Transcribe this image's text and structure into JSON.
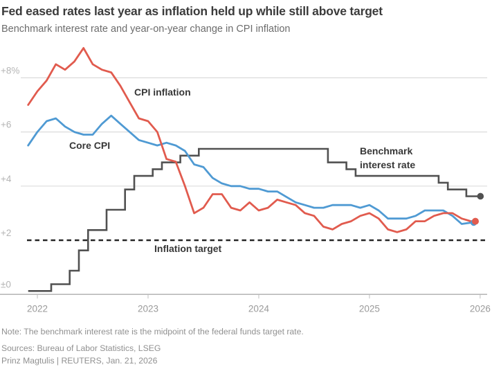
{
  "header": {
    "title": "Fed eased rates last year as inflation held up while still above target",
    "subtitle": "Benchmark interest rate and year-on-year change in CPI inflation"
  },
  "labels": {
    "cpi": "CPI inflation",
    "core": "Core CPI",
    "benchmark": "Benchmark interest rate",
    "target": "Inflation target"
  },
  "footer": {
    "note": "Note: The benchmark interest rate is the midpoint of the federal funds target rate.",
    "sources": "Sources: Bureau of Labor Statistics, LSEG",
    "byline": "Prinz Magtulis | REUTERS, Jan. 21, 2026"
  },
  "colors": {
    "cpi": "#e15b4e",
    "core": "#4f9ad3",
    "benchmark": "#515151",
    "target": "#262626",
    "grid": "#dbdbdb",
    "baseline": "#ababab",
    "tick": "#c9c9c9",
    "y_label": "#b5b5b5",
    "x_label": "#9a9a9a"
  },
  "chart_data": {
    "type": "line",
    "title": "Fed eased rates last year as inflation held up while still above target",
    "subtitle": "Benchmark interest rate and year-on-year change in CPI inflation",
    "x_start": "2021-12",
    "x_freq": "monthly",
    "x_tick_labels": [
      "2022",
      "2023",
      "2024",
      "2025",
      "2026"
    ],
    "y_ticks": [
      {
        "label": "+8%",
        "value": 8
      },
      {
        "label": "+6",
        "value": 6
      },
      {
        "label": "+4",
        "value": 4
      },
      {
        "label": "+2",
        "value": 2
      },
      {
        "label": "±0",
        "value": 0
      }
    ],
    "ylim": [
      0,
      9.6
    ],
    "grid": "horizontal",
    "legend_position": "inline-annotations",
    "series": [
      {
        "name": "CPI inflation",
        "style": "line",
        "color_key": "cpi",
        "end_dot": true,
        "values": [
          7.0,
          7.5,
          7.9,
          8.5,
          8.3,
          8.6,
          9.1,
          8.5,
          8.3,
          8.2,
          7.7,
          7.1,
          6.5,
          6.4,
          6.0,
          5.0,
          4.9,
          4.0,
          3.0,
          3.2,
          3.7,
          3.7,
          3.2,
          3.1,
          3.4,
          3.1,
          3.2,
          3.5,
          3.4,
          3.3,
          3.0,
          2.9,
          2.5,
          2.4,
          2.6,
          2.7,
          2.9,
          3.0,
          2.8,
          2.4,
          2.3,
          2.4,
          2.7,
          2.7,
          2.9,
          3.0,
          3.0,
          2.8,
          2.7
        ]
      },
      {
        "name": "Core CPI",
        "style": "line",
        "color_key": "core",
        "end_dot": true,
        "values": [
          5.5,
          6.0,
          6.4,
          6.5,
          6.2,
          6.0,
          5.9,
          5.9,
          6.3,
          6.6,
          6.3,
          6.0,
          5.7,
          5.6,
          5.5,
          5.6,
          5.5,
          5.3,
          4.8,
          4.7,
          4.3,
          4.1,
          4.0,
          4.0,
          3.9,
          3.9,
          3.8,
          3.8,
          3.6,
          3.4,
          3.3,
          3.2,
          3.2,
          3.3,
          3.3,
          3.3,
          3.2,
          3.3,
          3.1,
          2.8,
          2.8,
          2.8,
          2.9,
          3.1,
          3.1,
          3.1,
          2.9,
          2.6,
          2.65
        ]
      },
      {
        "name": "Benchmark interest rate",
        "style": "step-mid",
        "color_key": "benchmark",
        "end_dot": true,
        "values": [
          0.125,
          0.125,
          0.125,
          0.375,
          0.375,
          0.875,
          1.625,
          2.375,
          2.375,
          3.125,
          3.125,
          3.875,
          4.375,
          4.375,
          4.625,
          4.875,
          4.875,
          5.125,
          5.125,
          5.375,
          5.375,
          5.375,
          5.375,
          5.375,
          5.375,
          5.375,
          5.375,
          5.375,
          5.375,
          5.375,
          5.375,
          5.375,
          5.375,
          4.875,
          4.875,
          4.625,
          4.375,
          4.375,
          4.375,
          4.375,
          4.375,
          4.375,
          4.375,
          4.375,
          4.375,
          4.125,
          3.875,
          3.875,
          3.625,
          3.625
        ]
      },
      {
        "name": "Inflation target",
        "style": "dashed-horizontal",
        "color_key": "target",
        "value": 2
      }
    ]
  }
}
